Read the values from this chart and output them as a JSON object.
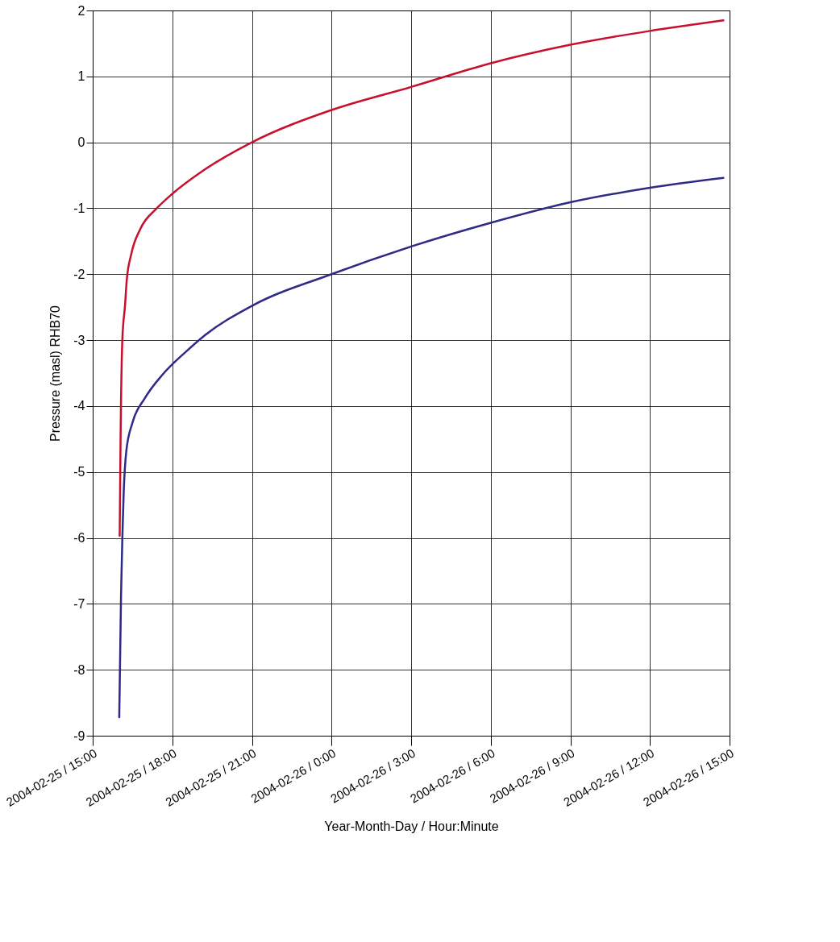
{
  "chart_data": {
    "type": "line",
    "xlabel": "Year-Month-Day / Hour:Minute",
    "ylabel": "Pressure (masl) RHB70",
    "xlim": [
      "2004-02-25T15:00",
      "2004-02-26T15:00"
    ],
    "xticks": [
      {
        "value": "2004-02-25T15:00",
        "label": "2004-02-25 / 15:00"
      },
      {
        "value": "2004-02-25T18:00",
        "label": "2004-02-25 / 18:00"
      },
      {
        "value": "2004-02-25T21:00",
        "label": "2004-02-25 / 21:00"
      },
      {
        "value": "2004-02-26T00:00",
        "label": "2004-02-26 / 0:00"
      },
      {
        "value": "2004-02-26T03:00",
        "label": "2004-02-26 / 3:00"
      },
      {
        "value": "2004-02-26T06:00",
        "label": "2004-02-26 / 6:00"
      },
      {
        "value": "2004-02-26T09:00",
        "label": "2004-02-26 / 9:00"
      },
      {
        "value": "2004-02-26T12:00",
        "label": "2004-02-26 / 12:00"
      },
      {
        "value": "2004-02-26T15:00",
        "label": "2004-02-26 / 15:00"
      }
    ],
    "ylim": [
      -9,
      2
    ],
    "yticks": [
      -9,
      -8,
      -7,
      -6,
      -5,
      -4,
      -3,
      -2,
      -1,
      0,
      1,
      2
    ],
    "grid": true,
    "line_style": "solid",
    "marker": "none",
    "series": [
      {
        "color": "#c8102e",
        "x": [
          "2004-02-25T16:01",
          "2004-02-25T16:03",
          "2004-02-25T16:07",
          "2004-02-25T16:13",
          "2004-02-25T16:17",
          "2004-02-25T16:27",
          "2004-02-25T16:48",
          "2004-02-25T17:25",
          "2004-02-25T18:00",
          "2004-02-25T19:05",
          "2004-02-25T21:00",
          "2004-02-26T00:00",
          "2004-02-26T03:00",
          "2004-02-26T06:00",
          "2004-02-26T09:00",
          "2004-02-26T12:00",
          "2004-02-26T14:46"
        ],
        "values": [
          -5.97,
          -4.5,
          -3.0,
          -2.48,
          -2.09,
          -1.7,
          -1.31,
          -1.0,
          -0.78,
          -0.45,
          0.0,
          0.49,
          0.84,
          1.2,
          1.48,
          1.69,
          1.85
        ]
      },
      {
        "color": "#2e2a85",
        "x": [
          "2004-02-25T16:00",
          "2004-02-25T16:04",
          "2004-02-25T16:07",
          "2004-02-25T16:10",
          "2004-02-25T16:16",
          "2004-02-25T16:30",
          "2004-02-25T16:57",
          "2004-02-25T17:37",
          "2004-02-25T18:30",
          "2004-02-25T19:11",
          "2004-02-25T21:00",
          "2004-02-26T00:00",
          "2004-02-26T03:00",
          "2004-02-26T06:00",
          "2004-02-26T09:00",
          "2004-02-26T12:00",
          "2004-02-26T14:46"
        ],
        "values": [
          -8.72,
          -6.9,
          -6.0,
          -5.32,
          -4.68,
          -4.25,
          -3.89,
          -3.53,
          -3.18,
          -2.94,
          -2.48,
          -2.0,
          -1.58,
          -1.22,
          -0.91,
          -0.69,
          -0.54
        ]
      }
    ]
  }
}
